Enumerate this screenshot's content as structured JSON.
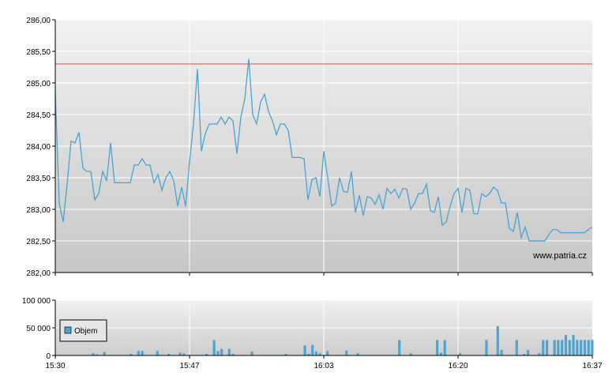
{
  "chart_data": [
    {
      "type": "line",
      "watermark": "www.patria.cz",
      "x_ticks": [
        "15:30",
        "15:47",
        "16:03",
        "16:20",
        "16:37"
      ],
      "y_ticks": [
        "282,00",
        "282,50",
        "283,00",
        "283,50",
        "284,00",
        "284,50",
        "285,00",
        "285,50",
        "286,00"
      ],
      "ylim": [
        282.0,
        286.0
      ],
      "grid": true,
      "reference_line": {
        "value": 285.3,
        "color": "#d94a4a"
      },
      "colors": {
        "line": "#4aa3d0",
        "grid": "#ffffff"
      },
      "series": [
        {
          "values": [
            284.85,
            283.1,
            282.8,
            283.4,
            284.08,
            284.05,
            284.22,
            283.65,
            283.6,
            283.6,
            283.15,
            283.25,
            283.6,
            283.45,
            284.05,
            283.42,
            283.42,
            283.42,
            283.42,
            283.42,
            283.7,
            283.7,
            283.8,
            283.7,
            283.7,
            283.42,
            283.55,
            283.3,
            283.5,
            283.6,
            283.45,
            283.05,
            283.35,
            283.05,
            283.75,
            284.35,
            285.22,
            283.92,
            284.2,
            284.35,
            284.35,
            284.35,
            284.46,
            284.35,
            284.46,
            284.4,
            283.88,
            284.46,
            284.75,
            285.38,
            284.5,
            284.35,
            284.7,
            284.82,
            284.55,
            284.4,
            284.18,
            284.35,
            284.35,
            284.25,
            283.82,
            283.82,
            283.82,
            283.8,
            283.15,
            283.47,
            283.5,
            283.2,
            283.92,
            283.5,
            283.05,
            283.1,
            283.5,
            283.28,
            283.27,
            283.6,
            282.95,
            283.22,
            282.9,
            283.2,
            283.18,
            283.08,
            283.23,
            283.0,
            283.33,
            283.25,
            283.32,
            283.18,
            283.33,
            283.32,
            283.0,
            283.1,
            283.25,
            283.25,
            283.4,
            282.98,
            282.95,
            283.2,
            282.75,
            282.8,
            283.05,
            283.25,
            283.33,
            282.95,
            283.33,
            283.3,
            282.93,
            282.93,
            283.25,
            283.2,
            283.25,
            283.35,
            283.3,
            283.1,
            283.1,
            282.7,
            282.65,
            282.95,
            282.55,
            282.72,
            282.5,
            282.5,
            282.5,
            282.5,
            282.5,
            282.6,
            282.68,
            282.68,
            282.63,
            282.63,
            282.63,
            282.63,
            282.63,
            282.63,
            282.63,
            282.68,
            282.72
          ]
        }
      ]
    },
    {
      "type": "bar",
      "x_ticks": [
        "15:30",
        "15:47",
        "16:03",
        "16:20",
        "16:37"
      ],
      "y_ticks": [
        "0",
        "50 000",
        "100 000"
      ],
      "ylim": [
        0,
        100000
      ],
      "grid": true,
      "legend": {
        "label": "Objem",
        "position": "left"
      },
      "colors": {
        "bar": "#4aa3d0"
      },
      "series": [
        {
          "name": "Objem",
          "values": [
            0,
            0,
            0,
            0,
            0,
            0,
            0,
            0,
            0,
            0,
            4000,
            2000,
            0,
            6000,
            0,
            0,
            0,
            0,
            0,
            0,
            3000,
            0,
            8000,
            8000,
            0,
            0,
            0,
            8000,
            0,
            0,
            3000,
            0,
            0,
            5000,
            4000,
            0,
            0,
            0,
            0,
            0,
            3000,
            0,
            28000,
            8000,
            12000,
            0,
            12000,
            3000,
            0,
            0,
            0,
            0,
            7000,
            0,
            0,
            0,
            0,
            0,
            0,
            0,
            0,
            3000,
            0,
            0,
            0,
            0,
            18000,
            3000,
            19000,
            7000,
            4000,
            0,
            8000,
            0,
            0,
            0,
            0,
            9000,
            0,
            0,
            4000,
            0,
            0,
            0,
            0,
            0,
            0,
            0,
            0,
            0,
            0,
            28000,
            0,
            0,
            4000,
            0,
            0,
            0,
            0,
            0,
            0,
            28000,
            5000,
            28000,
            0,
            0,
            0,
            4000,
            0,
            0,
            0,
            0,
            0,
            0,
            28000,
            0,
            0,
            53000,
            10000,
            0,
            0,
            0,
            28000,
            0,
            3000,
            10000,
            0,
            0,
            4000,
            28000,
            28000,
            0,
            28000,
            28000,
            28000,
            37000,
            28000,
            37000,
            28000,
            28000,
            28000,
            28000,
            28000
          ]
        }
      ]
    }
  ]
}
